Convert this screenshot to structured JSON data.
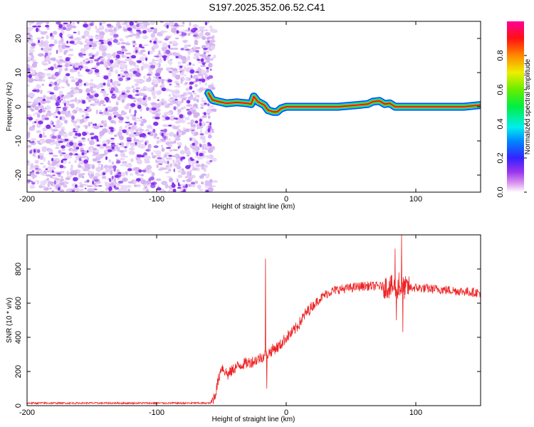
{
  "title": "S197.2025.352.06.52.C41",
  "chart_data": [
    {
      "type": "heatmap",
      "title": "S197.2025.352.06.52.C41",
      "xlabel": "Height of straight line (km)",
      "ylabel": "Frequency (Hz)",
      "xlim": [
        -200,
        150
      ],
      "ylim": [
        -25,
        25
      ],
      "x_ticks": [
        -200,
        -100,
        0,
        100
      ],
      "y_ticks": [
        -20,
        -10,
        0,
        10,
        20
      ],
      "noise_region_x": [
        -200,
        -58
      ],
      "ridge_points": [
        [
          -60,
          4
        ],
        [
          -57,
          2
        ],
        [
          -52,
          1.5
        ],
        [
          -46,
          1
        ],
        [
          -38,
          1.3
        ],
        [
          -30,
          1
        ],
        [
          -27,
          0.8
        ],
        [
          -25,
          3
        ],
        [
          -22,
          1.5
        ],
        [
          -17,
          0.5
        ],
        [
          -14,
          -1
        ],
        [
          -10,
          -1.5
        ],
        [
          -7,
          -1.5
        ],
        [
          -4,
          -0.5
        ],
        [
          0,
          0
        ],
        [
          20,
          0
        ],
        [
          40,
          0
        ],
        [
          55,
          0.5
        ],
        [
          63,
          0.8
        ],
        [
          67,
          1.5
        ],
        [
          72,
          1.7
        ],
        [
          76,
          0.8
        ],
        [
          80,
          1
        ],
        [
          84,
          0
        ],
        [
          100,
          0
        ],
        [
          120,
          0
        ],
        [
          137,
          0
        ],
        [
          150,
          0.5
        ]
      ],
      "colorbar": {
        "label": "Normalized spectral amplitude",
        "range": [
          0,
          1
        ],
        "ticks": [
          "0.0",
          "0.2",
          "0.4",
          "0.6",
          "0.8"
        ]
      }
    },
    {
      "type": "line",
      "series": [
        {
          "name": "SNR",
          "color": "#ee2222"
        }
      ],
      "xlabel": "Height of straight line (km)",
      "ylabel": "SNR (10 * v/v)",
      "xlim": [
        -200,
        150
      ],
      "ylim": [
        0,
        1000
      ],
      "x_ticks": [
        -200,
        -100,
        0,
        100
      ],
      "y_ticks": [
        0,
        200,
        400,
        600,
        800
      ],
      "baseline_points": [
        [
          -200,
          15
        ],
        [
          -58,
          15
        ],
        [
          -55,
          60
        ],
        [
          -50,
          230
        ],
        [
          -45,
          180
        ],
        [
          -40,
          220
        ],
        [
          -35,
          240
        ],
        [
          -30,
          250
        ],
        [
          -25,
          260
        ],
        [
          -20,
          280
        ],
        [
          -15,
          300
        ],
        [
          -10,
          330
        ],
        [
          -5,
          350
        ],
        [
          0,
          400
        ],
        [
          5,
          430
        ],
        [
          10,
          480
        ],
        [
          15,
          540
        ],
        [
          20,
          580
        ],
        [
          25,
          620
        ],
        [
          30,
          650
        ],
        [
          35,
          670
        ],
        [
          40,
          680
        ],
        [
          50,
          690
        ],
        [
          60,
          700
        ],
        [
          70,
          700
        ],
        [
          80,
          695
        ],
        [
          90,
          690
        ],
        [
          100,
          690
        ],
        [
          120,
          680
        ],
        [
          150,
          660
        ]
      ],
      "spikes": [
        [
          -16,
          860
        ],
        [
          -15,
          100
        ],
        [
          84,
          920
        ],
        [
          85,
          500
        ],
        [
          89,
          1000
        ],
        [
          90,
          430
        ],
        [
          87,
          780
        ]
      ]
    }
  ]
}
